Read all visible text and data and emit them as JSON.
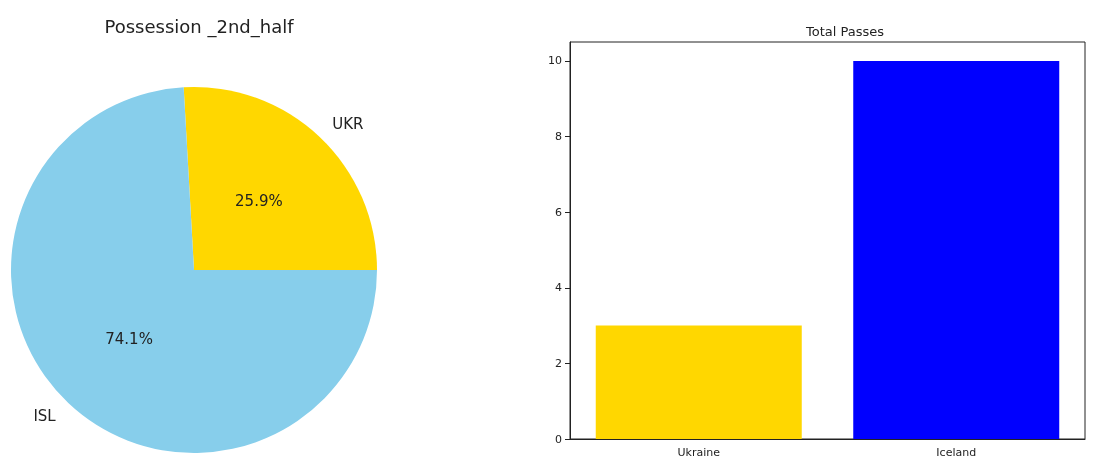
{
  "chart_data": [
    {
      "type": "pie",
      "title": "Possession _2nd_half",
      "categories": [
        "UKR",
        "ISL"
      ],
      "values": [
        25.9,
        74.1
      ],
      "colors": [
        "#ffd700",
        "#87ceeb"
      ],
      "value_labels": [
        "25.9%",
        "74.1%"
      ]
    },
    {
      "type": "bar",
      "title": "Total Passes",
      "categories": [
        "Ukraine",
        "Iceland"
      ],
      "values": [
        3,
        10
      ],
      "colors": [
        "#ffd700",
        "#0000ff"
      ],
      "ylim": [
        0,
        10.5
      ],
      "yticks": [
        0,
        2,
        4,
        6,
        8,
        10
      ],
      "grid": false
    }
  ]
}
